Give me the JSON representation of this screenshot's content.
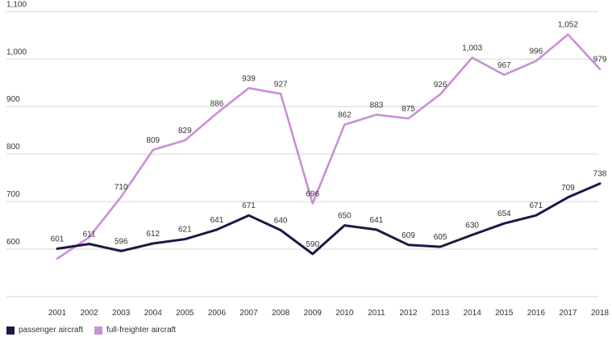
{
  "chart_data": {
    "type": "line",
    "x": [
      "2001",
      "2002",
      "2003",
      "2004",
      "2005",
      "2006",
      "2007",
      "2008",
      "2009",
      "2010",
      "2011",
      "2012",
      "2013",
      "2014",
      "2015",
      "2016",
      "2017",
      "2018"
    ],
    "series": [
      {
        "name": "passenger aircraft",
        "color": "#1b1a45",
        "values": [
          601,
          611,
          596,
          612,
          621,
          641,
          671,
          640,
          590,
          650,
          641,
          609,
          605,
          630,
          654,
          671,
          709,
          738
        ],
        "labels": [
          "601",
          "611",
          "596",
          "612",
          "621",
          "641",
          "671",
          "640",
          "590",
          "650",
          "641",
          "609",
          "605",
          "630",
          "654",
          "671",
          "709",
          "738"
        ]
      },
      {
        "name": "full-freighter aircraft",
        "color": "#c98fd6",
        "values": [
          580,
          625,
          710,
          809,
          829,
          886,
          939,
          927,
          696,
          862,
          883,
          875,
          926,
          1003,
          967,
          996,
          1052,
          979
        ],
        "labels": [
          "",
          "",
          "710",
          "809",
          "829",
          "886",
          "939",
          "927",
          "696",
          "862",
          "883",
          "875",
          "926",
          "1,003",
          "967",
          "996",
          "1,052",
          "979"
        ]
      }
    ],
    "y_ticks": [
      600,
      700,
      800,
      900,
      1000,
      1100
    ],
    "y_tick_labels": [
      "600",
      "700",
      "800",
      "900",
      "1,000",
      "1,100"
    ],
    "ylim": [
      500,
      1110
    ],
    "grid": true,
    "legend_position": "bottom-left",
    "title": "",
    "xlabel": "",
    "ylabel": ""
  }
}
